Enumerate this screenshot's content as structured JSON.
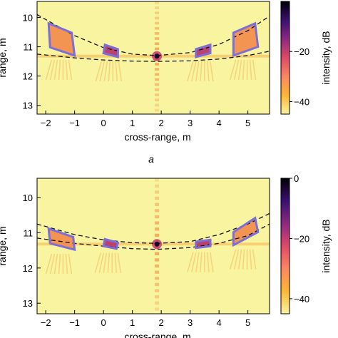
{
  "figure": {
    "panel_label_a": "a"
  },
  "colors": {
    "background": "#f8f4a0",
    "roi_outline": "#7b6fd6",
    "arc_dashed": "#111111",
    "colormap": [
      "#000004",
      "#3b0f70",
      "#8c2981",
      "#de4968",
      "#fb8761",
      "#fcb634",
      "#f8f4a0"
    ]
  },
  "chart_data": [
    {
      "type": "heatmap",
      "panel": "a",
      "title": "",
      "xlabel": "cross-range, m",
      "ylabel": "range, m",
      "xlim": [
        -2.3,
        5.75
      ],
      "ylim": [
        13.3,
        9.45
      ],
      "x_ticks": [
        "-2",
        "-1",
        "0",
        "1",
        "2",
        "3",
        "4",
        "5"
      ],
      "y_ticks": [
        "10",
        "11",
        "12",
        "13"
      ],
      "colorbar": {
        "label": "intensity, dB",
        "range": [
          -45,
          0
        ],
        "ticks": [
          "-20",
          "-40"
        ]
      },
      "bright_point": {
        "x": 1.85,
        "y": 11.32
      },
      "dashed_arcs": [
        {
          "name": "upper",
          "x": [
            -2.3,
            -1,
            0,
            1,
            1.85,
            3,
            4,
            5,
            5.75
          ],
          "y": [
            9.9,
            10.62,
            11.03,
            11.25,
            11.3,
            11.2,
            10.92,
            10.45,
            9.95
          ]
        },
        {
          "name": "lower",
          "x": [
            -2.3,
            -1,
            0,
            1,
            1.85,
            3,
            4,
            5,
            5.75
          ],
          "y": [
            11.25,
            11.38,
            11.45,
            11.49,
            11.5,
            11.48,
            11.42,
            11.3,
            11.15
          ]
        }
      ],
      "roi_boxes": [
        {
          "corners": [
            [
              -1.9,
              10.2
            ],
            [
              -1.1,
              10.52
            ],
            [
              -1.0,
              11.3
            ],
            [
              -1.85,
              11.02
            ]
          ]
        },
        {
          "corners": [
            [
              0.05,
              10.93
            ],
            [
              0.5,
              11.08
            ],
            [
              0.5,
              11.35
            ],
            [
              0.0,
              11.22
            ]
          ]
        },
        {
          "corners": [
            [
              3.2,
              11.08
            ],
            [
              3.7,
              10.93
            ],
            [
              3.7,
              11.22
            ],
            [
              3.2,
              11.35
            ]
          ]
        },
        {
          "corners": [
            [
              4.5,
              10.52
            ],
            [
              5.25,
              10.2
            ],
            [
              5.35,
              11.0
            ],
            [
              4.5,
              11.3
            ]
          ]
        }
      ]
    },
    {
      "type": "heatmap",
      "panel": "b",
      "title": "",
      "xlabel": "cross-range, m",
      "ylabel": "range, m",
      "xlim": [
        -2.3,
        5.75
      ],
      "ylim": [
        13.3,
        9.45
      ],
      "x_ticks": [
        "-2",
        "-1",
        "0",
        "1",
        "2",
        "3",
        "4",
        "5"
      ],
      "y_ticks": [
        "10",
        "11",
        "12",
        "13"
      ],
      "colorbar": {
        "label": "intensity, dB",
        "range": [
          -45,
          0
        ],
        "ticks": [
          "0",
          "-20",
          "-40"
        ]
      },
      "bright_point": {
        "x": 1.85,
        "y": 11.32
      },
      "dashed_arcs": [
        {
          "name": "upper",
          "x": [
            -2.3,
            -1,
            0,
            1,
            1.85,
            3,
            4,
            5,
            5.75
          ],
          "y": [
            10.75,
            11.05,
            11.2,
            11.28,
            11.3,
            11.25,
            11.05,
            10.75,
            10.45
          ]
        },
        {
          "name": "lower",
          "x": [
            -2.3,
            -1,
            0,
            1,
            1.85,
            3,
            4,
            5,
            5.75
          ],
          "y": [
            11.15,
            11.3,
            11.38,
            11.45,
            11.47,
            11.42,
            11.3,
            11.08,
            10.75
          ]
        }
      ],
      "roi_boxes": [
        {
          "corners": [
            [
              -1.9,
              10.88
            ],
            [
              -1.05,
              11.12
            ],
            [
              -1.0,
              11.48
            ],
            [
              -1.85,
              11.3
            ]
          ]
        },
        {
          "corners": [
            [
              0.05,
              11.18
            ],
            [
              0.5,
              11.28
            ],
            [
              0.45,
              11.45
            ],
            [
              0.0,
              11.38
            ]
          ]
        },
        {
          "corners": [
            [
              3.2,
              11.25
            ],
            [
              3.7,
              11.2
            ],
            [
              3.7,
              11.38
            ],
            [
              3.2,
              11.43
            ]
          ]
        },
        {
          "corners": [
            [
              4.5,
              10.98
            ],
            [
              5.25,
              10.58
            ],
            [
              5.35,
              10.98
            ],
            [
              4.5,
              11.35
            ]
          ]
        }
      ]
    }
  ]
}
